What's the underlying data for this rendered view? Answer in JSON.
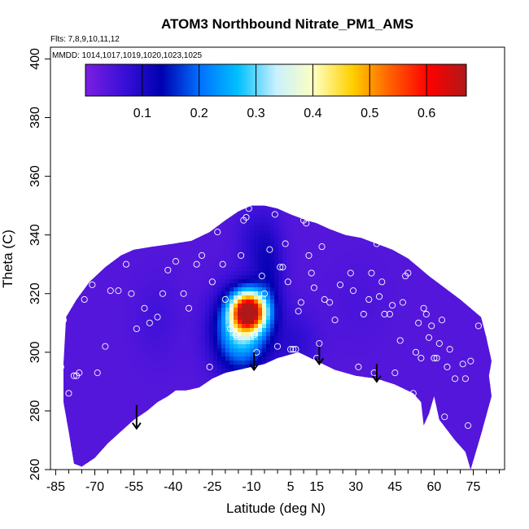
{
  "chart_data": {
    "type": "heatmap",
    "title": "ATOM3 Northbound Nitrate_PM1_AMS",
    "subtitle_flights": "Flts: 7,8,9,10,11,12",
    "subtitle_dates": "MMDD: 1014,1017,1019,1020,1023,1025",
    "xlabel": "Latitude (deg N)",
    "ylabel": "Theta (C)",
    "xlim": [
      -87,
      87
    ],
    "ylim": [
      260,
      404
    ],
    "x_ticks": [
      -85,
      -70,
      -55,
      -40,
      -25,
      -10,
      5,
      15,
      30,
      45,
      60,
      75
    ],
    "x_minor_ticks": [
      -80,
      -75,
      -65,
      -60,
      -50,
      -45,
      -35,
      -30,
      -20,
      -15,
      -5,
      0,
      10,
      20,
      25,
      35,
      40,
      50,
      55,
      65,
      70,
      80,
      85
    ],
    "y_ticks": [
      260,
      280,
      300,
      320,
      340,
      360,
      380,
      400
    ],
    "colorbar": {
      "min": 0.0,
      "max": 0.67,
      "ticks": [
        0.1,
        0.2,
        0.3,
        0.4,
        0.5,
        0.6
      ],
      "colors": [
        "#7b1fe0",
        "#3a10d8",
        "#0000b0",
        "#0070ff",
        "#00c0ff",
        "#c8f0ff",
        "#ffffc0",
        "#ffd000",
        "#ff6000",
        "#ff0000",
        "#b01818"
      ]
    },
    "field_background_value": 0.04,
    "field_features": [
      {
        "lat": -11,
        "theta": 314,
        "value": 0.62,
        "lat_sigma": 4.5,
        "theta_sigma": 4.5
      },
      {
        "lat": -14,
        "theta": 307,
        "value": 0.3,
        "lat_sigma": 7,
        "theta_sigma": 9
      },
      {
        "lat": -3,
        "theta": 326,
        "value": 0.11,
        "lat_sigma": 4,
        "theta_sigma": 12
      },
      {
        "lat": -9,
        "theta": 338,
        "value": 0.08,
        "lat_sigma": 5,
        "theta_sigma": 8
      },
      {
        "lat": -46,
        "theta": 311,
        "value": 0.06,
        "lat_sigma": 6,
        "theta_sigma": 10
      },
      {
        "lat": 7,
        "theta": 303,
        "value": 0.08,
        "lat_sigma": 6,
        "theta_sigma": 8
      },
      {
        "lat": 31,
        "theta": 317,
        "value": 0.05,
        "lat_sigma": 8,
        "theta_sigma": 10
      }
    ],
    "coverage_boundary": [
      [
        -82,
        296
      ],
      [
        -81,
        312
      ],
      [
        -77,
        318
      ],
      [
        -72,
        324
      ],
      [
        -66,
        329
      ],
      [
        -60,
        333
      ],
      [
        -55,
        335
      ],
      [
        -48,
        336
      ],
      [
        -40,
        337
      ],
      [
        -33,
        338
      ],
      [
        -26,
        341
      ],
      [
        -20,
        345
      ],
      [
        -15,
        348
      ],
      [
        -10,
        350
      ],
      [
        -5,
        350
      ],
      [
        0,
        349
      ],
      [
        5,
        347
      ],
      [
        11,
        345
      ],
      [
        15,
        344
      ],
      [
        20,
        342
      ],
      [
        26,
        340
      ],
      [
        32,
        339
      ],
      [
        38,
        337
      ],
      [
        44,
        335
      ],
      [
        50,
        332
      ],
      [
        54,
        329
      ],
      [
        58,
        326
      ],
      [
        64,
        322
      ],
      [
        70,
        318
      ],
      [
        74,
        315
      ],
      [
        78,
        312
      ],
      [
        80,
        305
      ],
      [
        82,
        297
      ],
      [
        81,
        292
      ],
      [
        82,
        285
      ],
      [
        78,
        272
      ],
      [
        74,
        260
      ],
      [
        72,
        266
      ],
      [
        68,
        270
      ],
      [
        62,
        277
      ],
      [
        60,
        285
      ],
      [
        58,
        279
      ],
      [
        56,
        275
      ],
      [
        55,
        283
      ],
      [
        52,
        286
      ],
      [
        45,
        289
      ],
      [
        38,
        291
      ],
      [
        30,
        292
      ],
      [
        22,
        294
      ],
      [
        15,
        297
      ],
      [
        8,
        300
      ],
      [
        0,
        298
      ],
      [
        -5,
        296
      ],
      [
        -10,
        295
      ],
      [
        -15,
        294
      ],
      [
        -20,
        293
      ],
      [
        -25,
        291
      ],
      [
        -30,
        288
      ],
      [
        -35,
        287
      ],
      [
        -39,
        287
      ],
      [
        -42,
        285
      ],
      [
        -46,
        283
      ],
      [
        -50,
        280
      ],
      [
        -55,
        277
      ],
      [
        -60,
        273
      ],
      [
        -65,
        269
      ],
      [
        -70,
        264
      ],
      [
        -75,
        261
      ],
      [
        -78,
        262
      ],
      [
        -80,
        273
      ],
      [
        -82,
        283
      ]
    ],
    "sample_points": [
      [
        -83,
        295
      ],
      [
        -82,
        311
      ],
      [
        -80,
        286
      ],
      [
        -79,
        261
      ],
      [
        -78,
        292
      ],
      [
        -77,
        292
      ],
      [
        -76,
        293
      ],
      [
        -74,
        318
      ],
      [
        -71,
        323
      ],
      [
        -69,
        293
      ],
      [
        -66,
        302
      ],
      [
        -64,
        321
      ],
      [
        -61,
        321
      ],
      [
        -58,
        330
      ],
      [
        -56,
        320
      ],
      [
        -54,
        308
      ],
      [
        -51,
        315
      ],
      [
        -49,
        310
      ],
      [
        -46,
        312
      ],
      [
        -44,
        320
      ],
      [
        -42,
        328
      ],
      [
        -39,
        331
      ],
      [
        -36,
        320
      ],
      [
        -34,
        315
      ],
      [
        -31,
        330
      ],
      [
        -29,
        333
      ],
      [
        -26,
        295
      ],
      [
        -25,
        324
      ],
      [
        -23,
        341
      ],
      [
        -21,
        330
      ],
      [
        -20,
        318
      ],
      [
        -18,
        308
      ],
      [
        -16,
        306
      ],
      [
        -14,
        333
      ],
      [
        -13,
        345
      ],
      [
        -12,
        346
      ],
      [
        -11,
        349
      ],
      [
        -9,
        306
      ],
      [
        -8,
        300
      ],
      [
        -6,
        326
      ],
      [
        -5,
        320
      ],
      [
        -3,
        335
      ],
      [
        -1,
        347
      ],
      [
        0,
        302
      ],
      [
        1,
        329
      ],
      [
        2,
        329
      ],
      [
        3,
        337
      ],
      [
        4,
        324
      ],
      [
        5,
        301
      ],
      [
        6,
        301
      ],
      [
        7,
        301
      ],
      [
        8,
        314
      ],
      [
        9,
        317
      ],
      [
        10,
        345
      ],
      [
        11,
        344
      ],
      [
        12,
        333
      ],
      [
        13,
        327
      ],
      [
        14,
        322
      ],
      [
        15,
        298
      ],
      [
        16,
        303
      ],
      [
        17,
        336
      ],
      [
        18,
        318
      ],
      [
        20,
        317
      ],
      [
        22,
        311
      ],
      [
        24,
        323
      ],
      [
        26,
        343
      ],
      [
        28,
        327
      ],
      [
        29,
        321
      ],
      [
        31,
        295
      ],
      [
        33,
        313
      ],
      [
        35,
        318
      ],
      [
        36,
        327
      ],
      [
        37,
        293
      ],
      [
        38,
        337
      ],
      [
        39,
        319
      ],
      [
        40,
        324
      ],
      [
        41,
        313
      ],
      [
        43,
        313
      ],
      [
        44,
        316
      ],
      [
        45,
        293
      ],
      [
        47,
        304
      ],
      [
        48,
        317
      ],
      [
        49,
        326
      ],
      [
        50,
        327
      ],
      [
        52,
        286
      ],
      [
        53,
        300
      ],
      [
        54,
        310
      ],
      [
        55,
        298
      ],
      [
        56,
        315
      ],
      [
        57,
        313
      ],
      [
        58,
        305
      ],
      [
        59,
        309
      ],
      [
        60,
        298
      ],
      [
        61,
        298
      ],
      [
        62,
        303
      ],
      [
        63,
        311
      ],
      [
        64,
        278
      ],
      [
        65,
        295
      ],
      [
        66,
        301
      ],
      [
        68,
        291
      ],
      [
        71,
        296
      ],
      [
        72,
        291
      ],
      [
        73,
        275
      ],
      [
        74,
        297
      ],
      [
        77,
        309
      ]
    ],
    "arrows": [
      {
        "lat": -54,
        "theta_top": 282,
        "theta_tip": 274
      },
      {
        "lat": -9,
        "theta_top": 300,
        "theta_tip": 294
      },
      {
        "lat": 16,
        "theta_top": 302,
        "theta_tip": 296
      },
      {
        "lat": 38,
        "theta_top": 296,
        "theta_tip": 290
      }
    ]
  }
}
